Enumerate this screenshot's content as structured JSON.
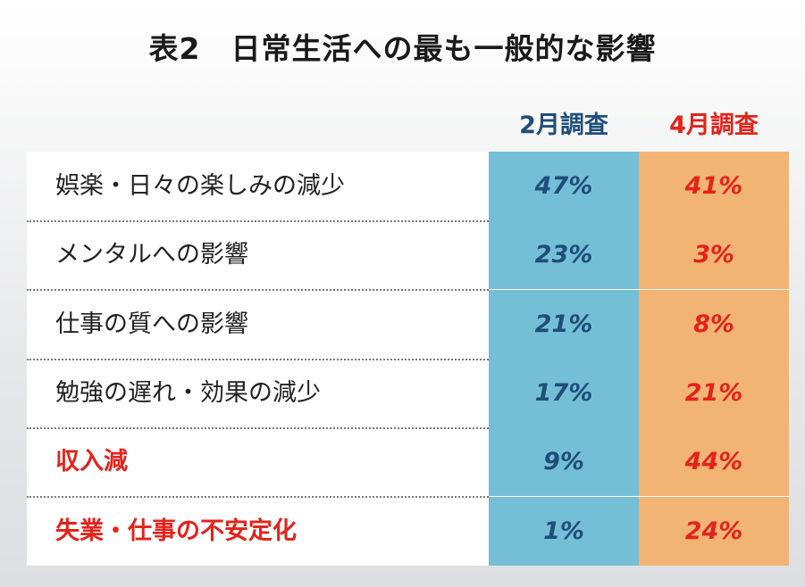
{
  "title": "表2　日常生活への最も一般的な影響",
  "columns": [
    "2月調査",
    "4月調査"
  ],
  "chart_data": {
    "type": "table",
    "title": "表2　日常生活への最も一般的な影響",
    "columns": [
      "2月調査",
      "4月調査"
    ],
    "rows": [
      {
        "label": "娯楽・日々の楽しみの減少",
        "feb": "47%",
        "apr": "41%",
        "highlight": false
      },
      {
        "label": "メンタルへの影響",
        "feb": "23%",
        "apr": "3%",
        "highlight": false
      },
      {
        "label": "仕事の質への影響",
        "feb": "21%",
        "apr": "8%",
        "highlight": false
      },
      {
        "label": "勉強の遅れ・効果の減少",
        "feb": "17%",
        "apr": "21%",
        "highlight": false
      },
      {
        "label": "収入減",
        "feb": "9%",
        "apr": "44%",
        "highlight": true
      },
      {
        "label": "失業・仕事の不安定化",
        "feb": "1%",
        "apr": "24%",
        "highlight": true
      }
    ]
  },
  "colors": {
    "feb_fill": "#74bfd6",
    "apr_fill": "#f2b474",
    "feb_text": "#1f4e79",
    "apr_text": "#e3231b"
  }
}
